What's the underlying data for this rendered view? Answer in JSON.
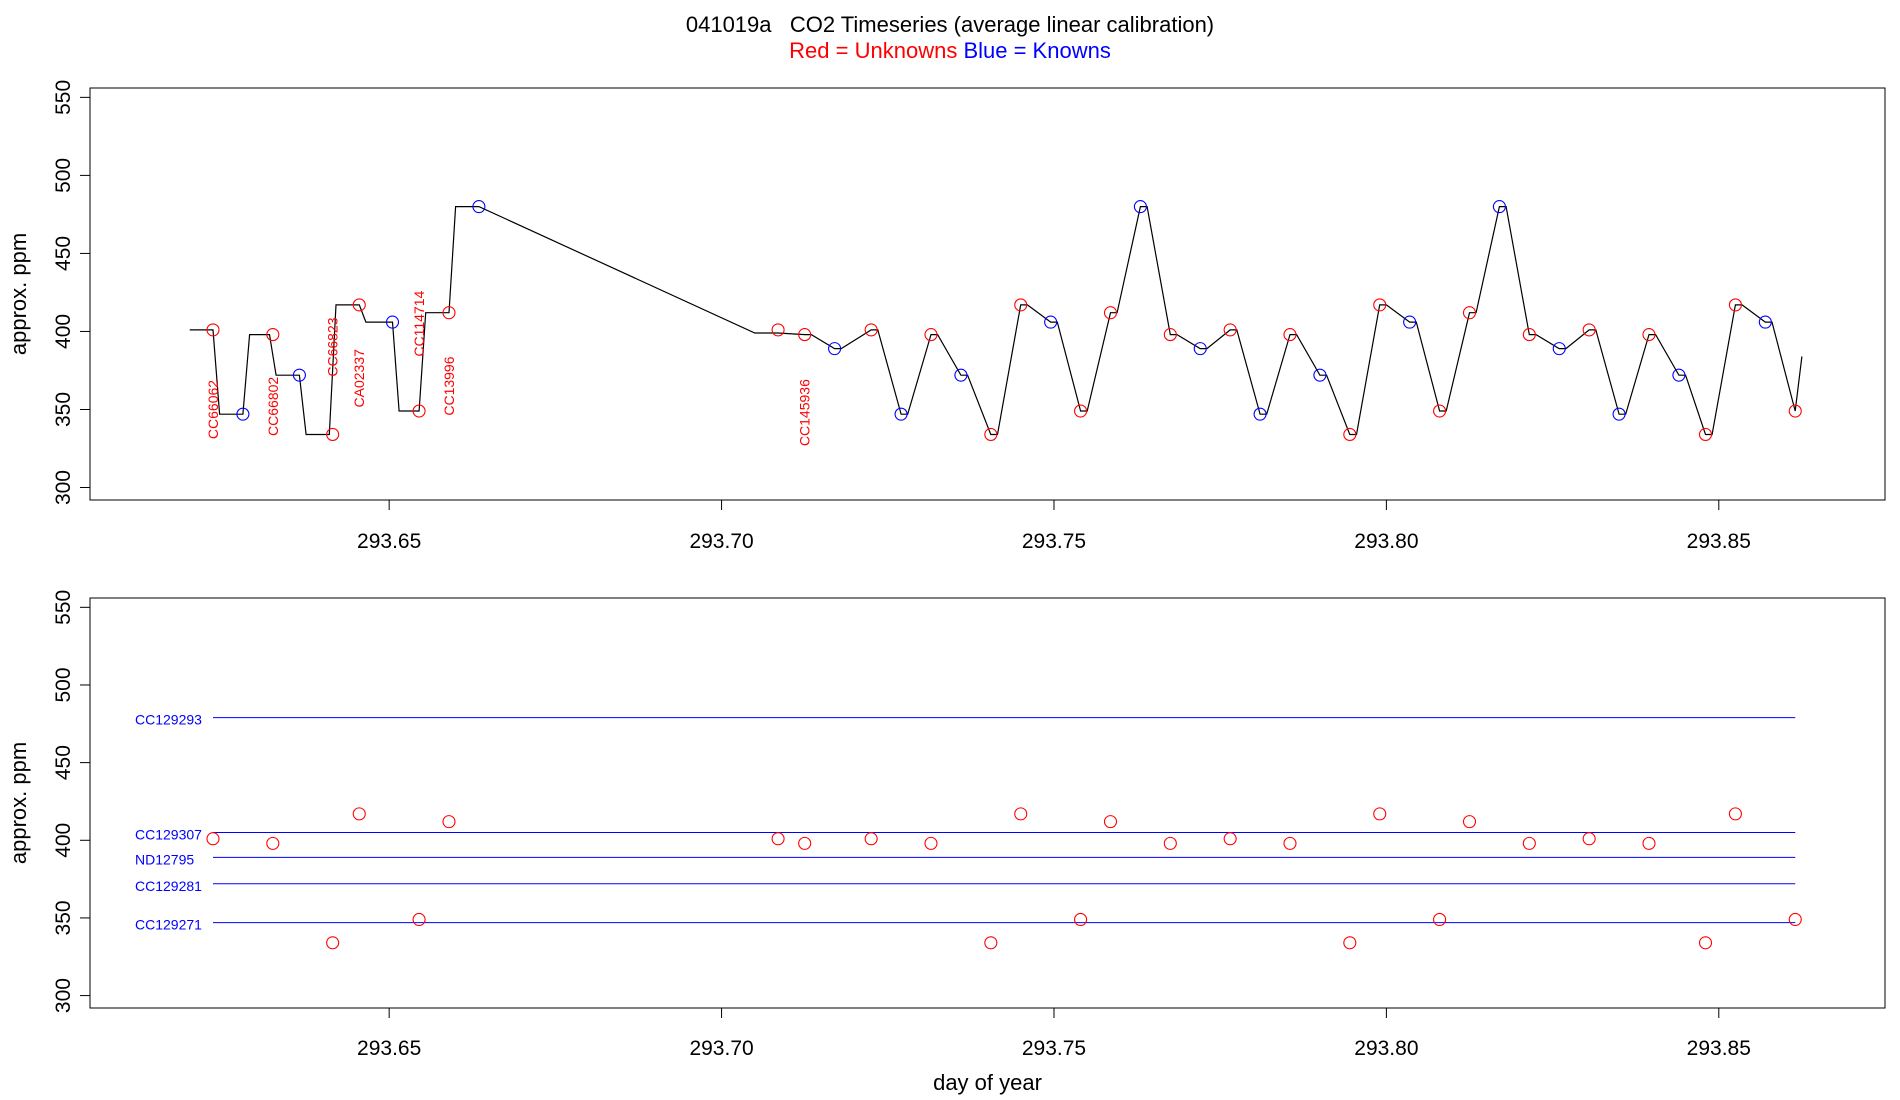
{
  "title": {
    "line1": "041019a   CO2 Timeseries (average linear calibration)",
    "unknowns_label": "Red = Unknowns",
    "knowns_label": "Blue = Knowns"
  },
  "colors": {
    "unknown": "#ff0000",
    "known": "#0000ff",
    "trace": "#000000"
  },
  "chart_data": [
    {
      "type": "line",
      "panel": "top",
      "xlabel": "",
      "ylabel": "approx. ppm",
      "xlim": [
        293.605,
        293.875
      ],
      "ylim": [
        292,
        556
      ],
      "xticks": [
        293.65,
        293.7,
        293.75,
        293.8,
        293.85
      ],
      "xtick_labels": [
        "293.65",
        "293.70",
        "293.75",
        "293.80",
        "293.85"
      ],
      "yticks": [
        300,
        350,
        400,
        450,
        500,
        550
      ],
      "ytick_labels": [
        "300",
        "350",
        "400",
        "450",
        "500",
        "550"
      ],
      "grid": false,
      "trace": {
        "x": [
          293.62,
          293.6235,
          293.6245,
          293.628,
          293.629,
          293.632,
          293.633,
          293.6365,
          293.6375,
          293.641,
          293.642,
          293.6455,
          293.6465,
          293.6505,
          293.6515,
          293.6545,
          293.6555,
          293.659,
          293.66,
          293.6635,
          293.705,
          293.7085,
          293.7125,
          293.7135,
          293.717,
          293.718,
          293.7225,
          293.7235,
          293.727,
          293.728,
          293.7315,
          293.7325,
          293.736,
          293.737,
          293.7405,
          293.7415,
          293.745,
          293.746,
          293.7495,
          293.7505,
          293.754,
          293.755,
          293.7585,
          293.7595,
          293.763,
          293.764,
          293.7675,
          293.7685,
          293.772,
          293.773,
          293.7765,
          293.7775,
          293.781,
          293.782,
          293.7855,
          293.7865,
          293.79,
          293.791,
          293.7945,
          293.7955,
          293.799,
          293.8,
          293.8035,
          293.8045,
          293.808,
          293.809,
          293.8125,
          293.8135,
          293.817,
          293.818,
          293.8215,
          293.8225,
          293.826,
          293.827,
          293.8305,
          293.8315,
          293.835,
          293.836,
          293.8395,
          293.8405,
          293.844,
          293.845,
          293.848,
          293.849,
          293.8525,
          293.8535,
          293.857,
          293.858,
          293.8615,
          293.8625
        ],
        "y": [
          401,
          401,
          347,
          347,
          398,
          398,
          372,
          372,
          334,
          334,
          417,
          417,
          406,
          406,
          349,
          349,
          412,
          412,
          480,
          480,
          399,
          399,
          398,
          398,
          389,
          389,
          401,
          401,
          347,
          347,
          398,
          398,
          372,
          372,
          334,
          334,
          417,
          417,
          406,
          406,
          349,
          349,
          412,
          412,
          480,
          480,
          398,
          398,
          389,
          389,
          401,
          401,
          347,
          347,
          398,
          398,
          372,
          372,
          334,
          334,
          417,
          417,
          406,
          406,
          349,
          349,
          412,
          412,
          480,
          480,
          398,
          398,
          389,
          389,
          401,
          401,
          347,
          347,
          398,
          398,
          372,
          372,
          334,
          334,
          417,
          417,
          406,
          406,
          349,
          384
        ]
      },
      "series": [
        {
          "role": "unknown",
          "x": [
            293.6235,
            293.6325,
            293.6415,
            293.6455,
            293.6545,
            293.659,
            293.7085,
            293.7125,
            293.7225,
            293.7315,
            293.7405,
            293.745,
            293.754,
            293.7585,
            293.7675,
            293.7765,
            293.7855,
            293.7945,
            293.799,
            293.808,
            293.8125,
            293.8215,
            293.8305,
            293.8395,
            293.848,
            293.8525,
            293.8615
          ],
          "y": [
            401,
            398,
            334,
            417,
            349,
            412,
            401,
            398,
            401,
            398,
            334,
            417,
            349,
            412,
            398,
            401,
            398,
            334,
            417,
            349,
            412,
            398,
            401,
            398,
            334,
            417,
            349
          ]
        },
        {
          "role": "known",
          "x": [
            293.628,
            293.6365,
            293.6505,
            293.6635,
            293.717,
            293.727,
            293.736,
            293.7495,
            293.763,
            293.772,
            293.781,
            293.79,
            293.8035,
            293.817,
            293.826,
            293.835,
            293.844,
            293.857
          ],
          "y": [
            347,
            372,
            406,
            480,
            389,
            347,
            372,
            406,
            480,
            389,
            347,
            372,
            406,
            480,
            389,
            347,
            372,
            406
          ]
        }
      ],
      "annotations": [
        {
          "text": "CC66062",
          "x": 293.6235,
          "y": 350
        },
        {
          "text": "CC66802",
          "x": 293.6325,
          "y": 352
        },
        {
          "text": "CC66823",
          "x": 293.6415,
          "y": 390
        },
        {
          "text": "CA02337",
          "x": 293.6455,
          "y": 370
        },
        {
          "text": "CC114714",
          "x": 293.6545,
          "y": 405
        },
        {
          "text": "CC13996",
          "x": 293.659,
          "y": 365
        },
        {
          "text": "CC145936",
          "x": 293.7125,
          "y": 348
        }
      ]
    },
    {
      "type": "scatter",
      "panel": "bottom",
      "xlabel": "day of year",
      "ylabel": "approx. ppm",
      "xlim": [
        293.605,
        293.875
      ],
      "ylim": [
        292,
        556
      ],
      "xticks": [
        293.65,
        293.7,
        293.75,
        293.8,
        293.85
      ],
      "xtick_labels": [
        "293.65",
        "293.70",
        "293.75",
        "293.80",
        "293.85"
      ],
      "yticks": [
        300,
        350,
        400,
        450,
        500,
        550
      ],
      "ytick_labels": [
        "300",
        "350",
        "400",
        "450",
        "500",
        "550"
      ],
      "grid": false,
      "reference_lines": [
        {
          "name": "CC129293",
          "y": 479
        },
        {
          "name": "CC129307",
          "y": 405
        },
        {
          "name": "ND12795",
          "y": 389
        },
        {
          "name": "CC129281",
          "y": 372
        },
        {
          "name": "CC129271",
          "y": 347
        }
      ],
      "series": [
        {
          "role": "unknown",
          "x": [
            293.6235,
            293.6325,
            293.6415,
            293.6455,
            293.6545,
            293.659,
            293.7085,
            293.7125,
            293.7225,
            293.7315,
            293.7405,
            293.745,
            293.754,
            293.7585,
            293.7675,
            293.7765,
            293.7855,
            293.7945,
            293.799,
            293.808,
            293.8125,
            293.8215,
            293.8305,
            293.8395,
            293.848,
            293.8525,
            293.8615
          ],
          "y": [
            401,
            398,
            334,
            417,
            349,
            412,
            401,
            398,
            401,
            398,
            334,
            417,
            349,
            412,
            398,
            401,
            398,
            334,
            417,
            349,
            412,
            398,
            401,
            398,
            334,
            417,
            349
          ]
        }
      ]
    }
  ]
}
